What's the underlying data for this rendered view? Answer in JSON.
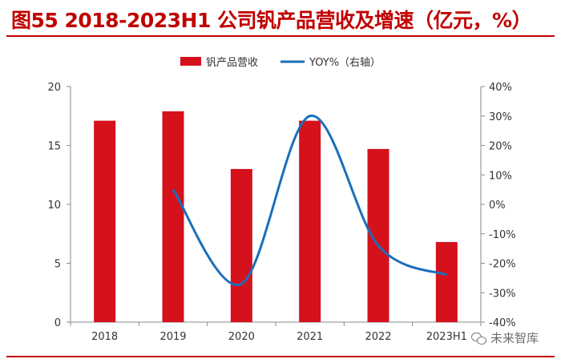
{
  "title": "图55  2018-2023H1 公司钒产品营收及增速（亿元，%）",
  "watermark": "未来智库",
  "colors": {
    "bar": "#d5111c",
    "line": "#1a6fbb",
    "title": "#c00000",
    "rule": "#c00000"
  },
  "chart_data": {
    "type": "bar",
    "categories": [
      "2018",
      "2019",
      "2020",
      "2021",
      "2022",
      "2023H1"
    ],
    "series": [
      {
        "name": "钒产品营收",
        "type": "bar",
        "axis": "left",
        "values": [
          17.1,
          17.9,
          13.0,
          17.1,
          14.7,
          6.8
        ]
      },
      {
        "name": "YOY%（右轴）",
        "type": "line",
        "axis": "right",
        "values": [
          null,
          5,
          -27,
          30,
          -14,
          -24
        ]
      }
    ],
    "ylim": [
      0,
      20
    ],
    "yticks": [
      "0",
      "5",
      "10",
      "15",
      "20"
    ],
    "y2lim": [
      -40,
      40
    ],
    "y2ticks": [
      "-40%",
      "-30%",
      "-20%",
      "-10%",
      "0%",
      "10%",
      "20%",
      "30%",
      "40%"
    ],
    "legend_position": "top-center",
    "grid": false
  }
}
